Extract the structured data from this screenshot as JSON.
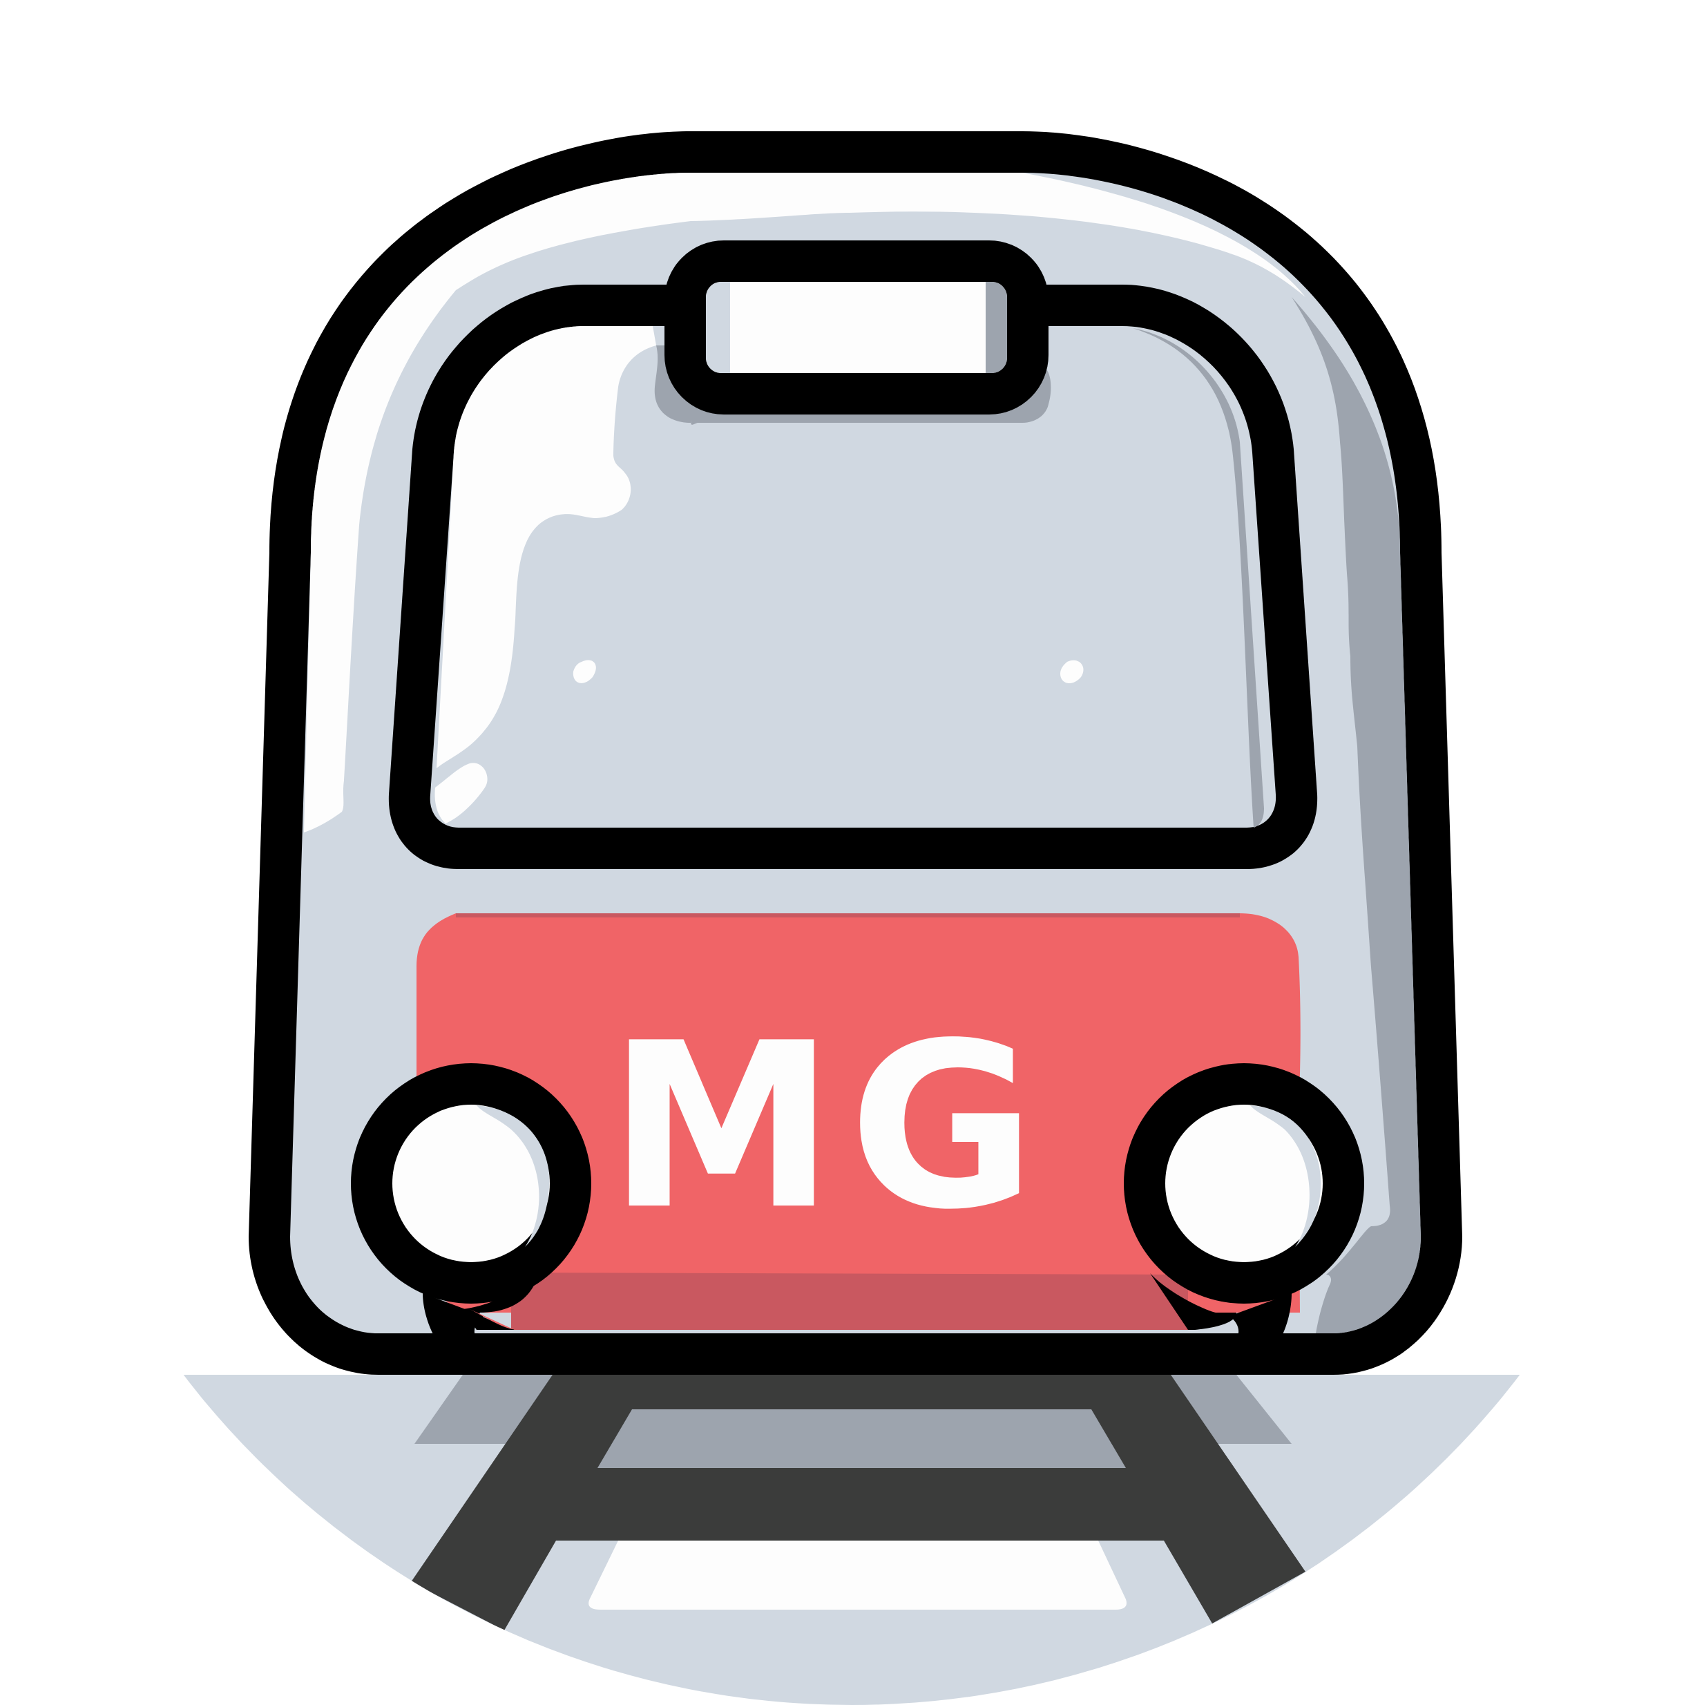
{
  "logo": {
    "plate_text": "MG",
    "icon_name": "train-front-icon",
    "colors": {
      "background": "#ffffff",
      "outline": "#000000",
      "body": "#d0d8e1",
      "body_shade": "#9da4ae",
      "highlight": "#fdfdfd",
      "plate": "#f06467",
      "plate_shade": "#c95860",
      "rail": "#3b3c3b",
      "ground": "#d0d8e1"
    }
  }
}
